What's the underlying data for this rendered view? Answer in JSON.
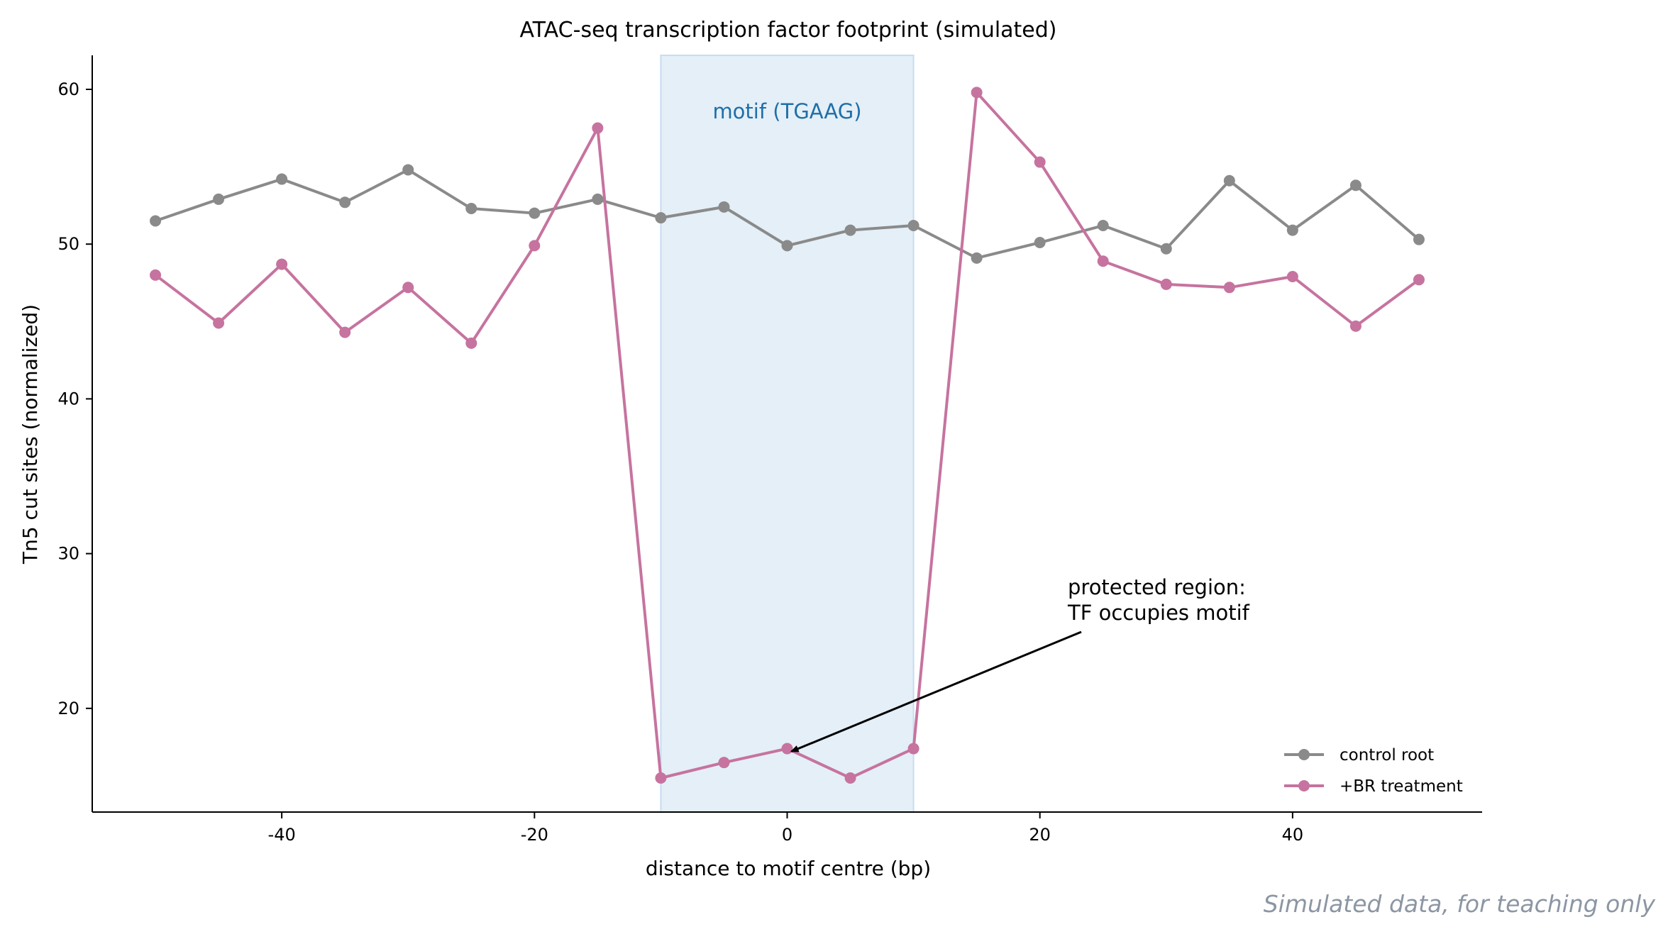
{
  "chart_data": {
    "type": "line",
    "title": "ATAC-seq transcription factor footprint (simulated)",
    "xlabel": "distance to motif centre (bp)",
    "ylabel": "Tn5 cut sites (normalized)",
    "xlim": [
      -55,
      55
    ],
    "ylim": [
      13.3,
      62.2
    ],
    "xticks": [
      -40,
      -20,
      0,
      20,
      40
    ],
    "yticks": [
      20,
      30,
      40,
      50,
      60
    ],
    "grid": false,
    "legend_placement": "lower-right",
    "x": [
      -50,
      -45,
      -40,
      -35,
      -30,
      -25,
      -20,
      -15,
      -10,
      -5,
      0,
      5,
      10,
      15,
      20,
      25,
      30,
      35,
      40,
      45,
      50
    ],
    "series": [
      {
        "name": "control root",
        "color": "#8a8a8a",
        "values": [
          51.5,
          52.9,
          54.2,
          52.7,
          54.8,
          52.3,
          52.0,
          52.9,
          51.7,
          52.4,
          49.9,
          50.9,
          51.2,
          49.1,
          50.1,
          51.2,
          49.7,
          54.1,
          50.9,
          53.8,
          50.3
        ]
      },
      {
        "name": "+BR treatment",
        "color": "#c6739f",
        "values": [
          48.0,
          44.9,
          48.7,
          44.3,
          47.2,
          43.6,
          49.9,
          57.5,
          15.5,
          16.5,
          17.4,
          15.5,
          17.4,
          59.8,
          55.3,
          48.9,
          47.4,
          47.2,
          47.9,
          44.7,
          47.7
        ]
      }
    ],
    "shaded_region": {
      "x_range": [
        -10,
        10
      ],
      "label": "motif (TGAAG)",
      "fill_color": "#e4eff7",
      "edge_color": "#c8dcef",
      "label_color": "#1f6fa8"
    },
    "annotation": {
      "lines": [
        "protected region:",
        "TF occupies motif"
      ],
      "point": [
        0,
        17.4
      ]
    }
  },
  "watermark": "Simulated data, for teaching only"
}
